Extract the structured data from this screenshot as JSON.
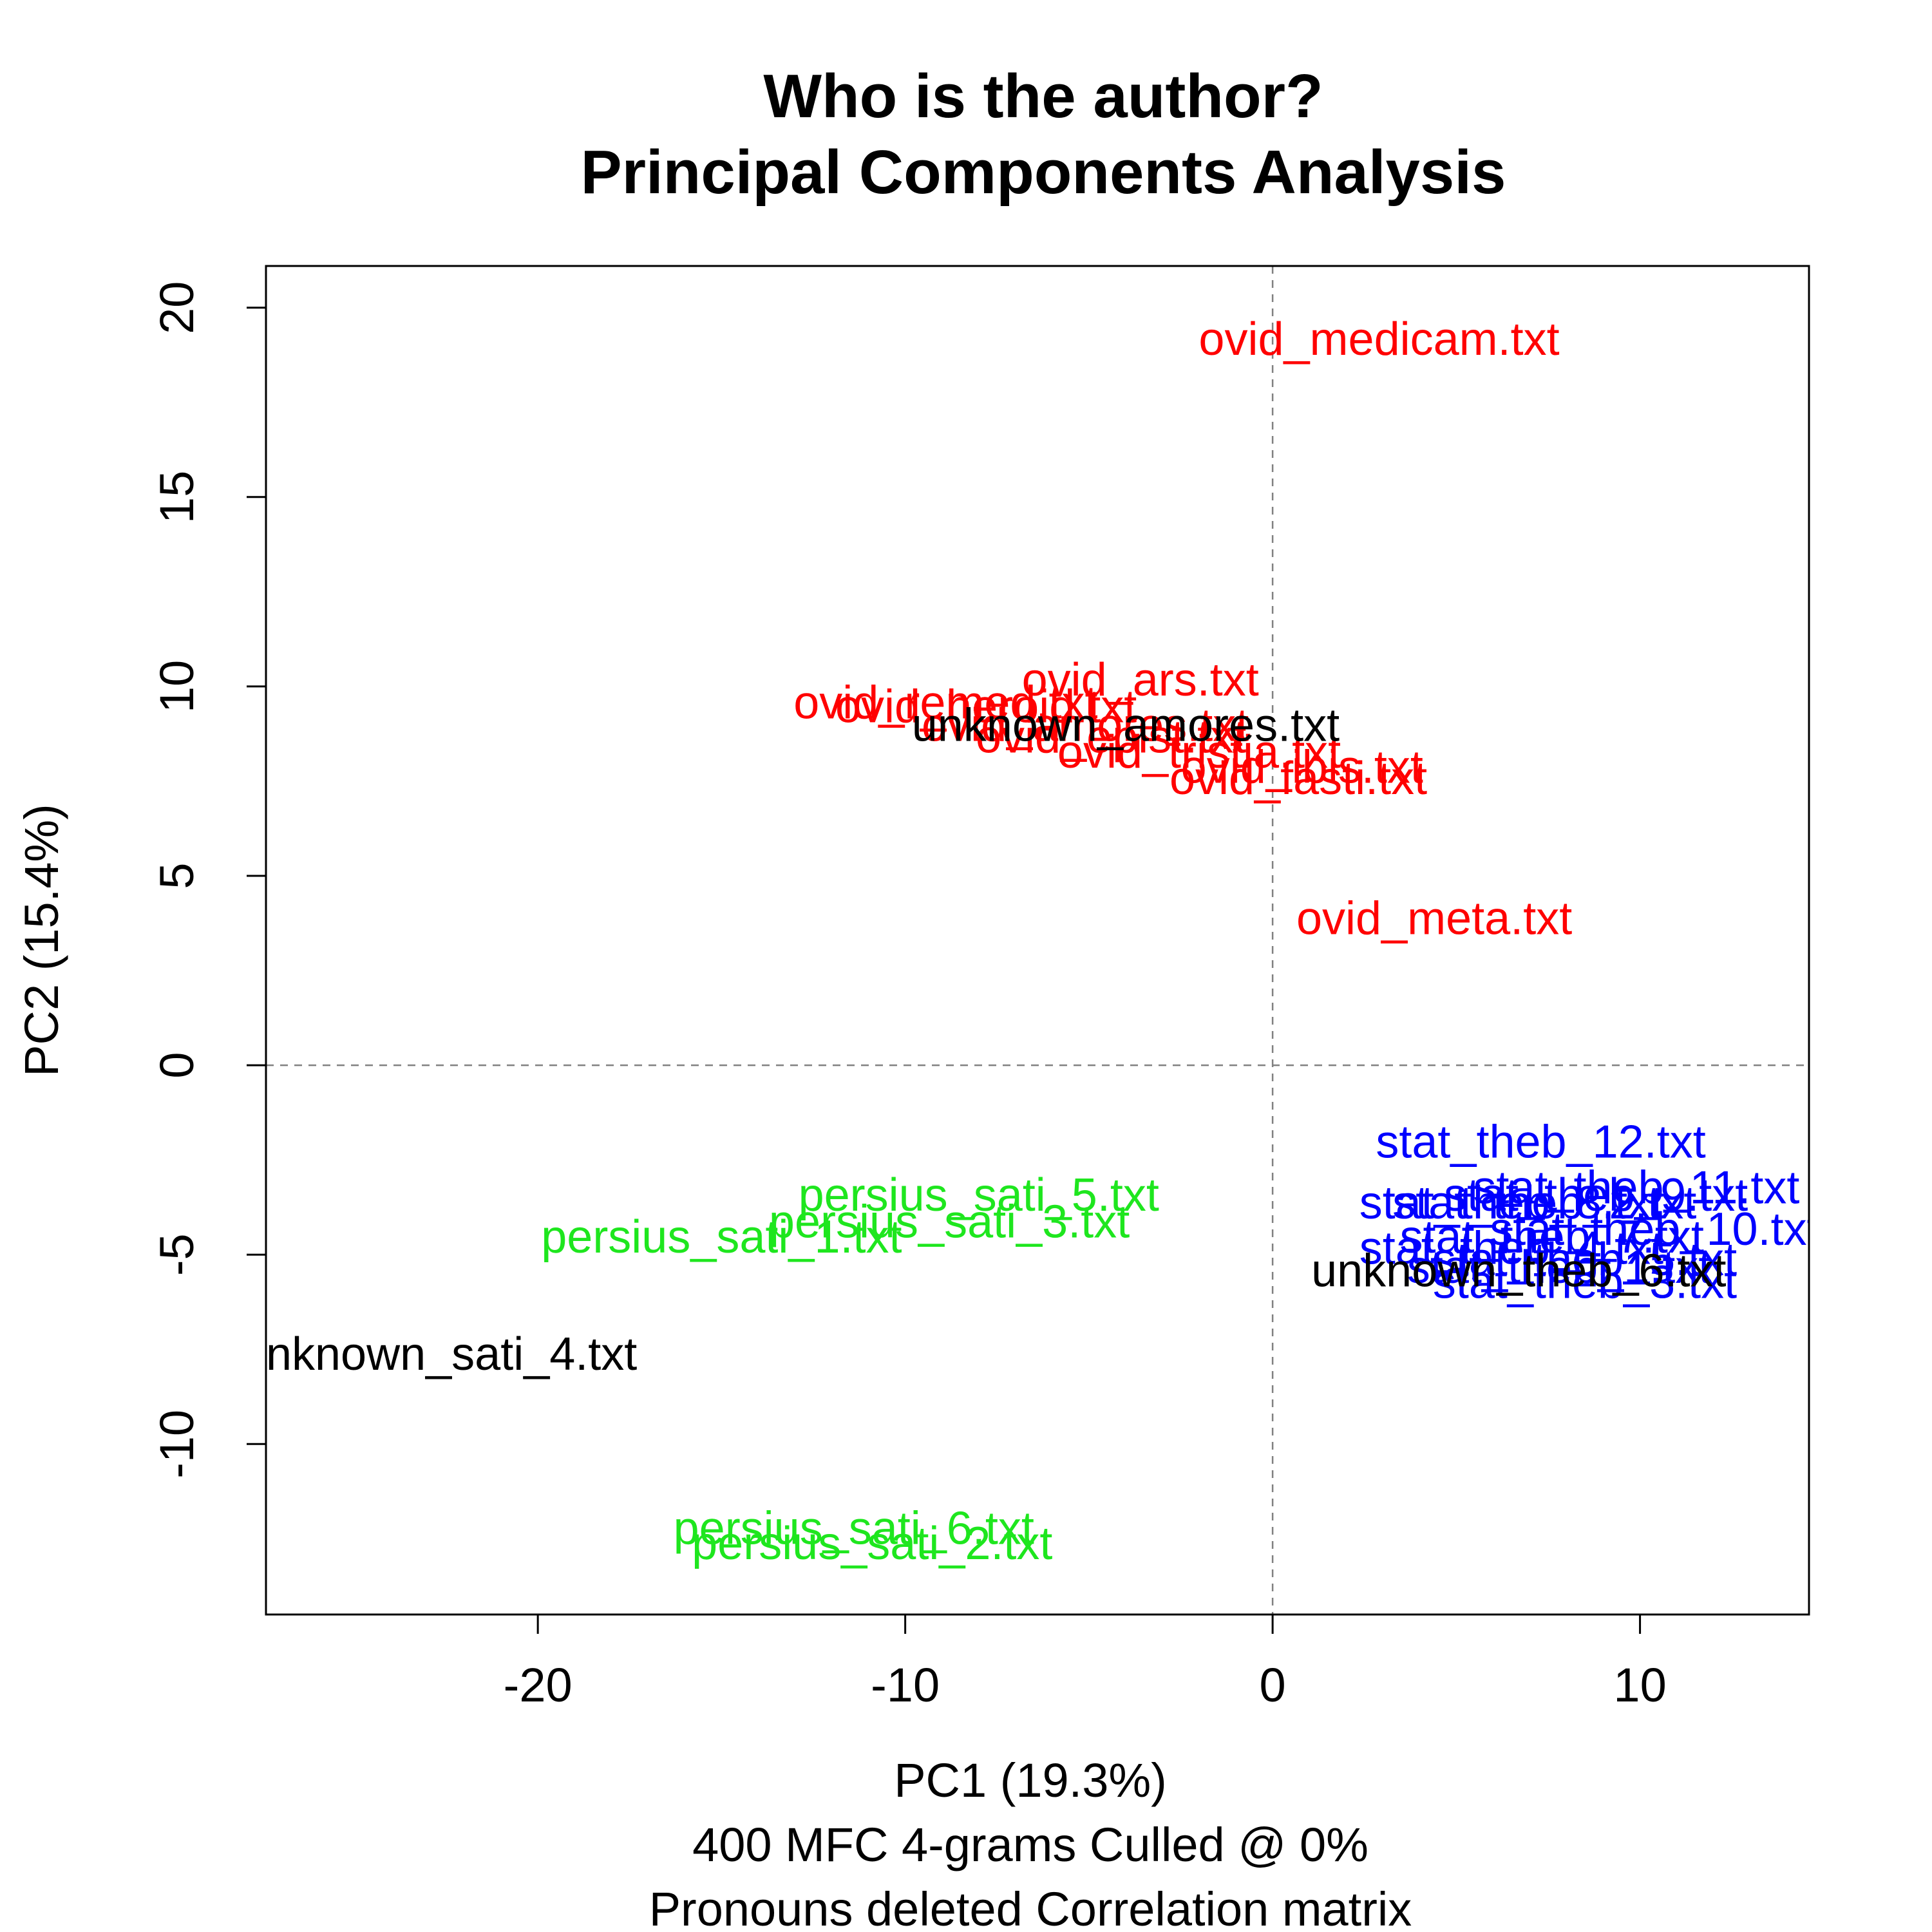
{
  "chart_data": {
    "type": "scatter",
    "title": "Who is the author?",
    "subtitle": "Principal Components Analysis",
    "xlabel": "PC1 (19.3%)",
    "ylabel": "PC2 (15.4%)",
    "caption_lines": [
      "400 MFC 4-grams Culled @ 0%",
      "Pronouns deleted Correlation matrix"
    ],
    "xlim": [
      -27.4,
      14.6
    ],
    "ylim": [
      -14.5,
      21.1
    ],
    "x_ticks": [
      -20,
      -10,
      0,
      10
    ],
    "y_ticks": [
      -10,
      -5,
      0,
      5,
      10,
      15,
      20
    ],
    "reference_lines": {
      "x": 0,
      "y": 0
    },
    "grid": false,
    "colors": {
      "ovid": "#ff0000",
      "persius": "#1ee61e",
      "stat": "#0000ff",
      "unknown": "#000000"
    },
    "points": [
      {
        "label": "ovid_medicam.txt",
        "group": "ovid",
        "x": 2.9,
        "y": 19.2
      },
      {
        "label": "ovid_ars.txt",
        "group": "ovid",
        "x": -3.6,
        "y": 10.2
      },
      {
        "label": "ovid_remed.txt",
        "group": "ovid",
        "x": -8.9,
        "y": 9.6
      },
      {
        "label": "ovid_heroid.txt",
        "group": "ovid",
        "x": -7.8,
        "y": 9.5
      },
      {
        "label": "ovid_amores.txt",
        "group": "ovid",
        "x": -5.1,
        "y": 9.0
      },
      {
        "label": "ovid_epist.txt",
        "group": "ovid",
        "x": -4.4,
        "y": 8.7
      },
      {
        "label": "ovid_tristia.txt",
        "group": "ovid",
        "x": -2.0,
        "y": 8.3
      },
      {
        "label": "ovid_ibis.txt",
        "group": "ovid",
        "x": 0.8,
        "y": 7.9
      },
      {
        "label": "ovid_fasti.txt",
        "group": "ovid",
        "x": 0.7,
        "y": 7.6
      },
      {
        "label": "ovid_meta.txt",
        "group": "ovid",
        "x": 4.4,
        "y": 3.9
      },
      {
        "label": "unknown_amores.txt",
        "group": "unknown",
        "x": -4.0,
        "y": 9.0
      },
      {
        "label": "persius_sati_5.txt",
        "group": "persius",
        "x": -8.0,
        "y": -3.4
      },
      {
        "label": "persius_sati_3.txt",
        "group": "persius",
        "x": -8.8,
        "y": -4.1
      },
      {
        "label": "persius_sati_1.txt",
        "group": "persius",
        "x": -15.0,
        "y": -4.5
      },
      {
        "label": "persius_sati_6.txt",
        "group": "persius",
        "x": -11.4,
        "y": -12.2
      },
      {
        "label": "persius_sati_2.txt",
        "group": "persius",
        "x": -10.9,
        "y": -12.6
      },
      {
        "label": "unknown_sati_4.txt",
        "group": "unknown",
        "x": -22.7,
        "y": -7.6
      },
      {
        "label": "stat_theb_12.txt",
        "group": "stat",
        "x": 7.3,
        "y": -2.0
      },
      {
        "label": "stat_theb_11.txt",
        "group": "stat",
        "x": 9.9,
        "y": -3.2
      },
      {
        "label": "stat_theb_9.txt",
        "group": "stat",
        "x": 8.8,
        "y": -3.4
      },
      {
        "label": "stat_theb_2.txt",
        "group": "stat",
        "x": 7.4,
        "y": -3.6
      },
      {
        "label": "stat_theb_8.txt",
        "group": "stat",
        "x": 6.5,
        "y": -3.6
      },
      {
        "label": "stat_theb_10.txt",
        "group": "stat",
        "x": 10.4,
        "y": -4.3
      },
      {
        "label": "stat_theb_7.txt",
        "group": "stat",
        "x": 7.6,
        "y": -4.5
      },
      {
        "label": "stat_theb_4.txt",
        "group": "stat",
        "x": 6.5,
        "y": -4.8
      },
      {
        "label": "stat_theb_5.txt",
        "group": "stat",
        "x": 8.5,
        "y": -5.1
      },
      {
        "label": "stat_theb_1.txt",
        "group": "stat",
        "x": 7.8,
        "y": -5.3
      },
      {
        "label": "stat_theb_3.txt",
        "group": "stat",
        "x": 8.5,
        "y": -5.7
      },
      {
        "label": "unknown_theb_6.txt",
        "group": "unknown",
        "x": 6.7,
        "y": -5.4
      }
    ]
  }
}
